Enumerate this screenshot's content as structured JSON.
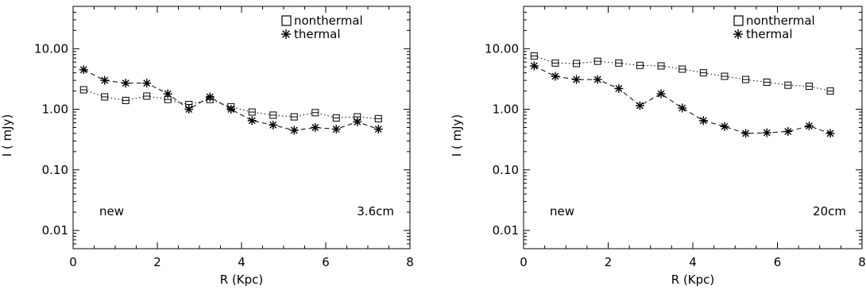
{
  "chart_data": [
    {
      "type": "line",
      "xlabel": "R (Kpc)",
      "ylabel": "I ( mJy)",
      "xlim": [
        0,
        8
      ],
      "ylim": [
        0.005,
        50
      ],
      "yscale": "log",
      "xticks": [
        "0",
        "2",
        "4",
        "6",
        "8"
      ],
      "yticks": [
        "0.01",
        "0.10",
        "1.00",
        "10.00"
      ],
      "annotations": {
        "left": "new",
        "right": "3.6cm"
      },
      "legend": {
        "placement": "top-right",
        "entries": [
          "nonthermal",
          "thermal"
        ]
      },
      "x": [
        0.25,
        0.75,
        1.25,
        1.75,
        2.25,
        2.75,
        3.25,
        3.75,
        4.25,
        4.75,
        5.25,
        5.75,
        6.25,
        6.75,
        7.25
      ],
      "series": [
        {
          "name": "nonthermal",
          "marker": "square",
          "line": "dotted",
          "values": [
            2.1,
            1.6,
            1.4,
            1.65,
            1.45,
            1.2,
            1.45,
            1.1,
            0.9,
            0.8,
            0.75,
            0.88,
            0.72,
            0.75,
            0.7
          ]
        },
        {
          "name": "thermal",
          "marker": "asterisk",
          "line": "dashed",
          "values": [
            4.5,
            3.0,
            2.7,
            2.7,
            1.8,
            1.0,
            1.6,
            1.0,
            0.65,
            0.55,
            0.45,
            0.5,
            0.47,
            0.62,
            0.47
          ]
        }
      ]
    },
    {
      "type": "line",
      "xlabel": "R (Kpc)",
      "ylabel": "I ( mJy)",
      "xlim": [
        0,
        8
      ],
      "ylim": [
        0.005,
        50
      ],
      "yscale": "log",
      "xticks": [
        "0",
        "2",
        "4",
        "6",
        "8"
      ],
      "yticks": [
        "0.01",
        "0.10",
        "1.00",
        "10.00"
      ],
      "annotations": {
        "left": "new",
        "right": "20cm"
      },
      "legend": {
        "placement": "top-right",
        "entries": [
          "nonthermal",
          "thermal"
        ]
      },
      "x": [
        0.25,
        0.75,
        1.25,
        1.75,
        2.25,
        2.75,
        3.25,
        3.75,
        4.25,
        4.75,
        5.25,
        5.75,
        6.25,
        6.75,
        7.25
      ],
      "series": [
        {
          "name": "nonthermal",
          "marker": "square",
          "line": "dotted",
          "values": [
            7.6,
            5.8,
            5.7,
            6.2,
            5.8,
            5.3,
            5.2,
            4.6,
            4.0,
            3.5,
            3.1,
            2.8,
            2.5,
            2.4,
            2.0
          ]
        },
        {
          "name": "thermal",
          "marker": "asterisk",
          "line": "dashed",
          "values": [
            5.2,
            3.5,
            3.1,
            3.1,
            2.2,
            1.15,
            1.8,
            1.05,
            0.65,
            0.52,
            0.4,
            0.41,
            0.43,
            0.53,
            0.4
          ]
        }
      ]
    }
  ]
}
